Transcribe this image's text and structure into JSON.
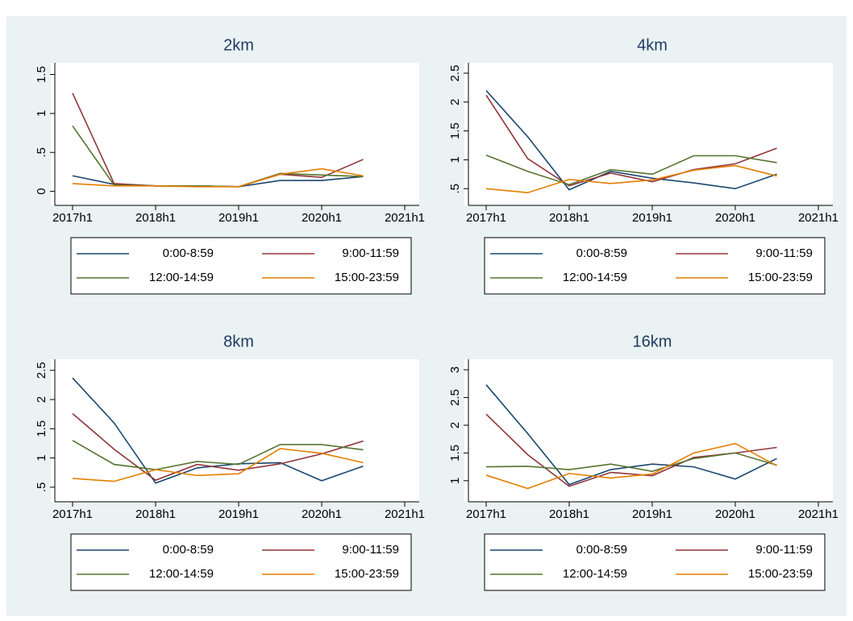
{
  "chart_data": [
    {
      "type": "line",
      "title": "2km",
      "grid": false,
      "x": [
        2017,
        2017.5,
        2018,
        2018.5,
        2019,
        2019.5,
        2020,
        2020.5
      ],
      "xlim": [
        2017,
        2021
      ],
      "xticks": [
        {
          "value": 2017,
          "label": "2017h1"
        },
        {
          "value": 2018,
          "label": "2018h1"
        },
        {
          "value": 2019,
          "label": "2019h1"
        },
        {
          "value": 2020,
          "label": "2020h1"
        },
        {
          "value": 2021,
          "label": "2021h1"
        }
      ],
      "ylim": [
        -0.18,
        1.65
      ],
      "yticks": [
        0,
        {
          "value": 0.5,
          "label": ".5"
        },
        1,
        1.5
      ],
      "series": [
        {
          "name": "0:00-8:59",
          "color": "#1a476f",
          "values": [
            0.2,
            0.09,
            0.07,
            0.07,
            0.06,
            0.14,
            0.14,
            0.19
          ]
        },
        {
          "name": "9:00-11:59",
          "color": "#90353b",
          "values": [
            1.26,
            0.1,
            0.07,
            0.07,
            0.06,
            0.22,
            0.18,
            0.41
          ]
        },
        {
          "name": "12:00-14:59",
          "color": "#55752f",
          "values": [
            0.84,
            0.08,
            0.07,
            0.07,
            0.06,
            0.23,
            0.21,
            0.19
          ]
        },
        {
          "name": "15:00-23:59",
          "color": "#e37e00",
          "values": [
            0.1,
            0.07,
            0.07,
            0.06,
            0.06,
            0.22,
            0.29,
            0.2
          ]
        }
      ]
    },
    {
      "type": "line",
      "title": "4km",
      "grid": false,
      "x": [
        2017,
        2017.5,
        2018,
        2018.5,
        2019,
        2019.5,
        2020,
        2020.5
      ],
      "xlim": [
        2017,
        2021
      ],
      "xticks": [
        {
          "value": 2017,
          "label": "2017h1"
        },
        {
          "value": 2018,
          "label": "2018h1"
        },
        {
          "value": 2019,
          "label": "2019h1"
        },
        {
          "value": 2020,
          "label": "2020h1"
        },
        {
          "value": 2021,
          "label": "2021h1"
        }
      ],
      "ylim": [
        0.21,
        2.68
      ],
      "yticks": [
        {
          "value": 0.5,
          "label": ".5"
        },
        1,
        1.5,
        2,
        2.5
      ],
      "series": [
        {
          "name": "0:00-8:59",
          "color": "#1a476f",
          "values": [
            2.2,
            1.4,
            0.48,
            0.8,
            0.68,
            0.6,
            0.5,
            0.75
          ]
        },
        {
          "name": "9:00-11:59",
          "color": "#90353b",
          "values": [
            2.12,
            1.02,
            0.55,
            0.77,
            0.62,
            0.83,
            0.93,
            1.2
          ]
        },
        {
          "name": "12:00-14:59",
          "color": "#55752f",
          "values": [
            1.08,
            0.8,
            0.57,
            0.83,
            0.75,
            1.07,
            1.07,
            0.95
          ]
        },
        {
          "name": "15:00-23:59",
          "color": "#e37e00",
          "values": [
            0.5,
            0.43,
            0.66,
            0.59,
            0.65,
            0.82,
            0.9,
            0.72
          ]
        }
      ]
    },
    {
      "type": "line",
      "title": "8km",
      "grid": false,
      "x": [
        2017,
        2017.5,
        2018,
        2018.5,
        2019,
        2019.5,
        2020,
        2020.5
      ],
      "xlim": [
        2017,
        2021
      ],
      "xticks": [
        {
          "value": 2017,
          "label": "2017h1"
        },
        {
          "value": 2018,
          "label": "2018h1"
        },
        {
          "value": 2019,
          "label": "2019h1"
        },
        {
          "value": 2020,
          "label": "2020h1"
        },
        {
          "value": 2021,
          "label": "2021h1"
        }
      ],
      "ylim": [
        0.25,
        2.69
      ],
      "yticks": [
        {
          "value": 0.5,
          "label": ".5"
        },
        1,
        1.5,
        2,
        2.5
      ],
      "series": [
        {
          "name": "0:00-8:59",
          "color": "#1a476f",
          "values": [
            2.37,
            1.6,
            0.57,
            0.83,
            0.9,
            0.92,
            0.61,
            0.86
          ]
        },
        {
          "name": "9:00-11:59",
          "color": "#90353b",
          "values": [
            1.76,
            1.15,
            0.62,
            0.89,
            0.79,
            0.9,
            1.07,
            1.29
          ]
        },
        {
          "name": "12:00-14:59",
          "color": "#55752f",
          "values": [
            1.3,
            0.89,
            0.8,
            0.94,
            0.89,
            1.23,
            1.23,
            1.14
          ]
        },
        {
          "name": "15:00-23:59",
          "color": "#e37e00",
          "values": [
            0.65,
            0.6,
            0.8,
            0.7,
            0.73,
            1.16,
            1.08,
            0.92
          ]
        }
      ]
    },
    {
      "type": "line",
      "title": "16km",
      "grid": false,
      "x": [
        2017,
        2017.5,
        2018,
        2018.5,
        2019,
        2019.5,
        2020,
        2020.5
      ],
      "xlim": [
        2017,
        2021
      ],
      "xticks": [
        {
          "value": 2017,
          "label": "2017h1"
        },
        {
          "value": 2018,
          "label": "2018h1"
        },
        {
          "value": 2019,
          "label": "2019h1"
        },
        {
          "value": 2020,
          "label": "2020h1"
        },
        {
          "value": 2021,
          "label": "2021h1"
        }
      ],
      "ylim": [
        0.62,
        3.19
      ],
      "yticks": [
        1,
        1.5,
        2,
        2.5,
        3
      ],
      "series": [
        {
          "name": "0:00-8:59",
          "color": "#1a476f",
          "values": [
            2.73,
            1.85,
            0.93,
            1.2,
            1.3,
            1.25,
            1.03,
            1.4
          ]
        },
        {
          "name": "9:00-11:59",
          "color": "#90353b",
          "values": [
            2.2,
            1.47,
            0.9,
            1.15,
            1.09,
            1.42,
            1.5,
            1.6
          ]
        },
        {
          "name": "12:00-14:59",
          "color": "#55752f",
          "values": [
            1.25,
            1.26,
            1.2,
            1.3,
            1.17,
            1.4,
            1.5,
            1.28
          ]
        },
        {
          "name": "15:00-23:59",
          "color": "#e37e00",
          "values": [
            1.1,
            0.86,
            1.13,
            1.05,
            1.12,
            1.5,
            1.67,
            1.27
          ]
        }
      ]
    }
  ]
}
